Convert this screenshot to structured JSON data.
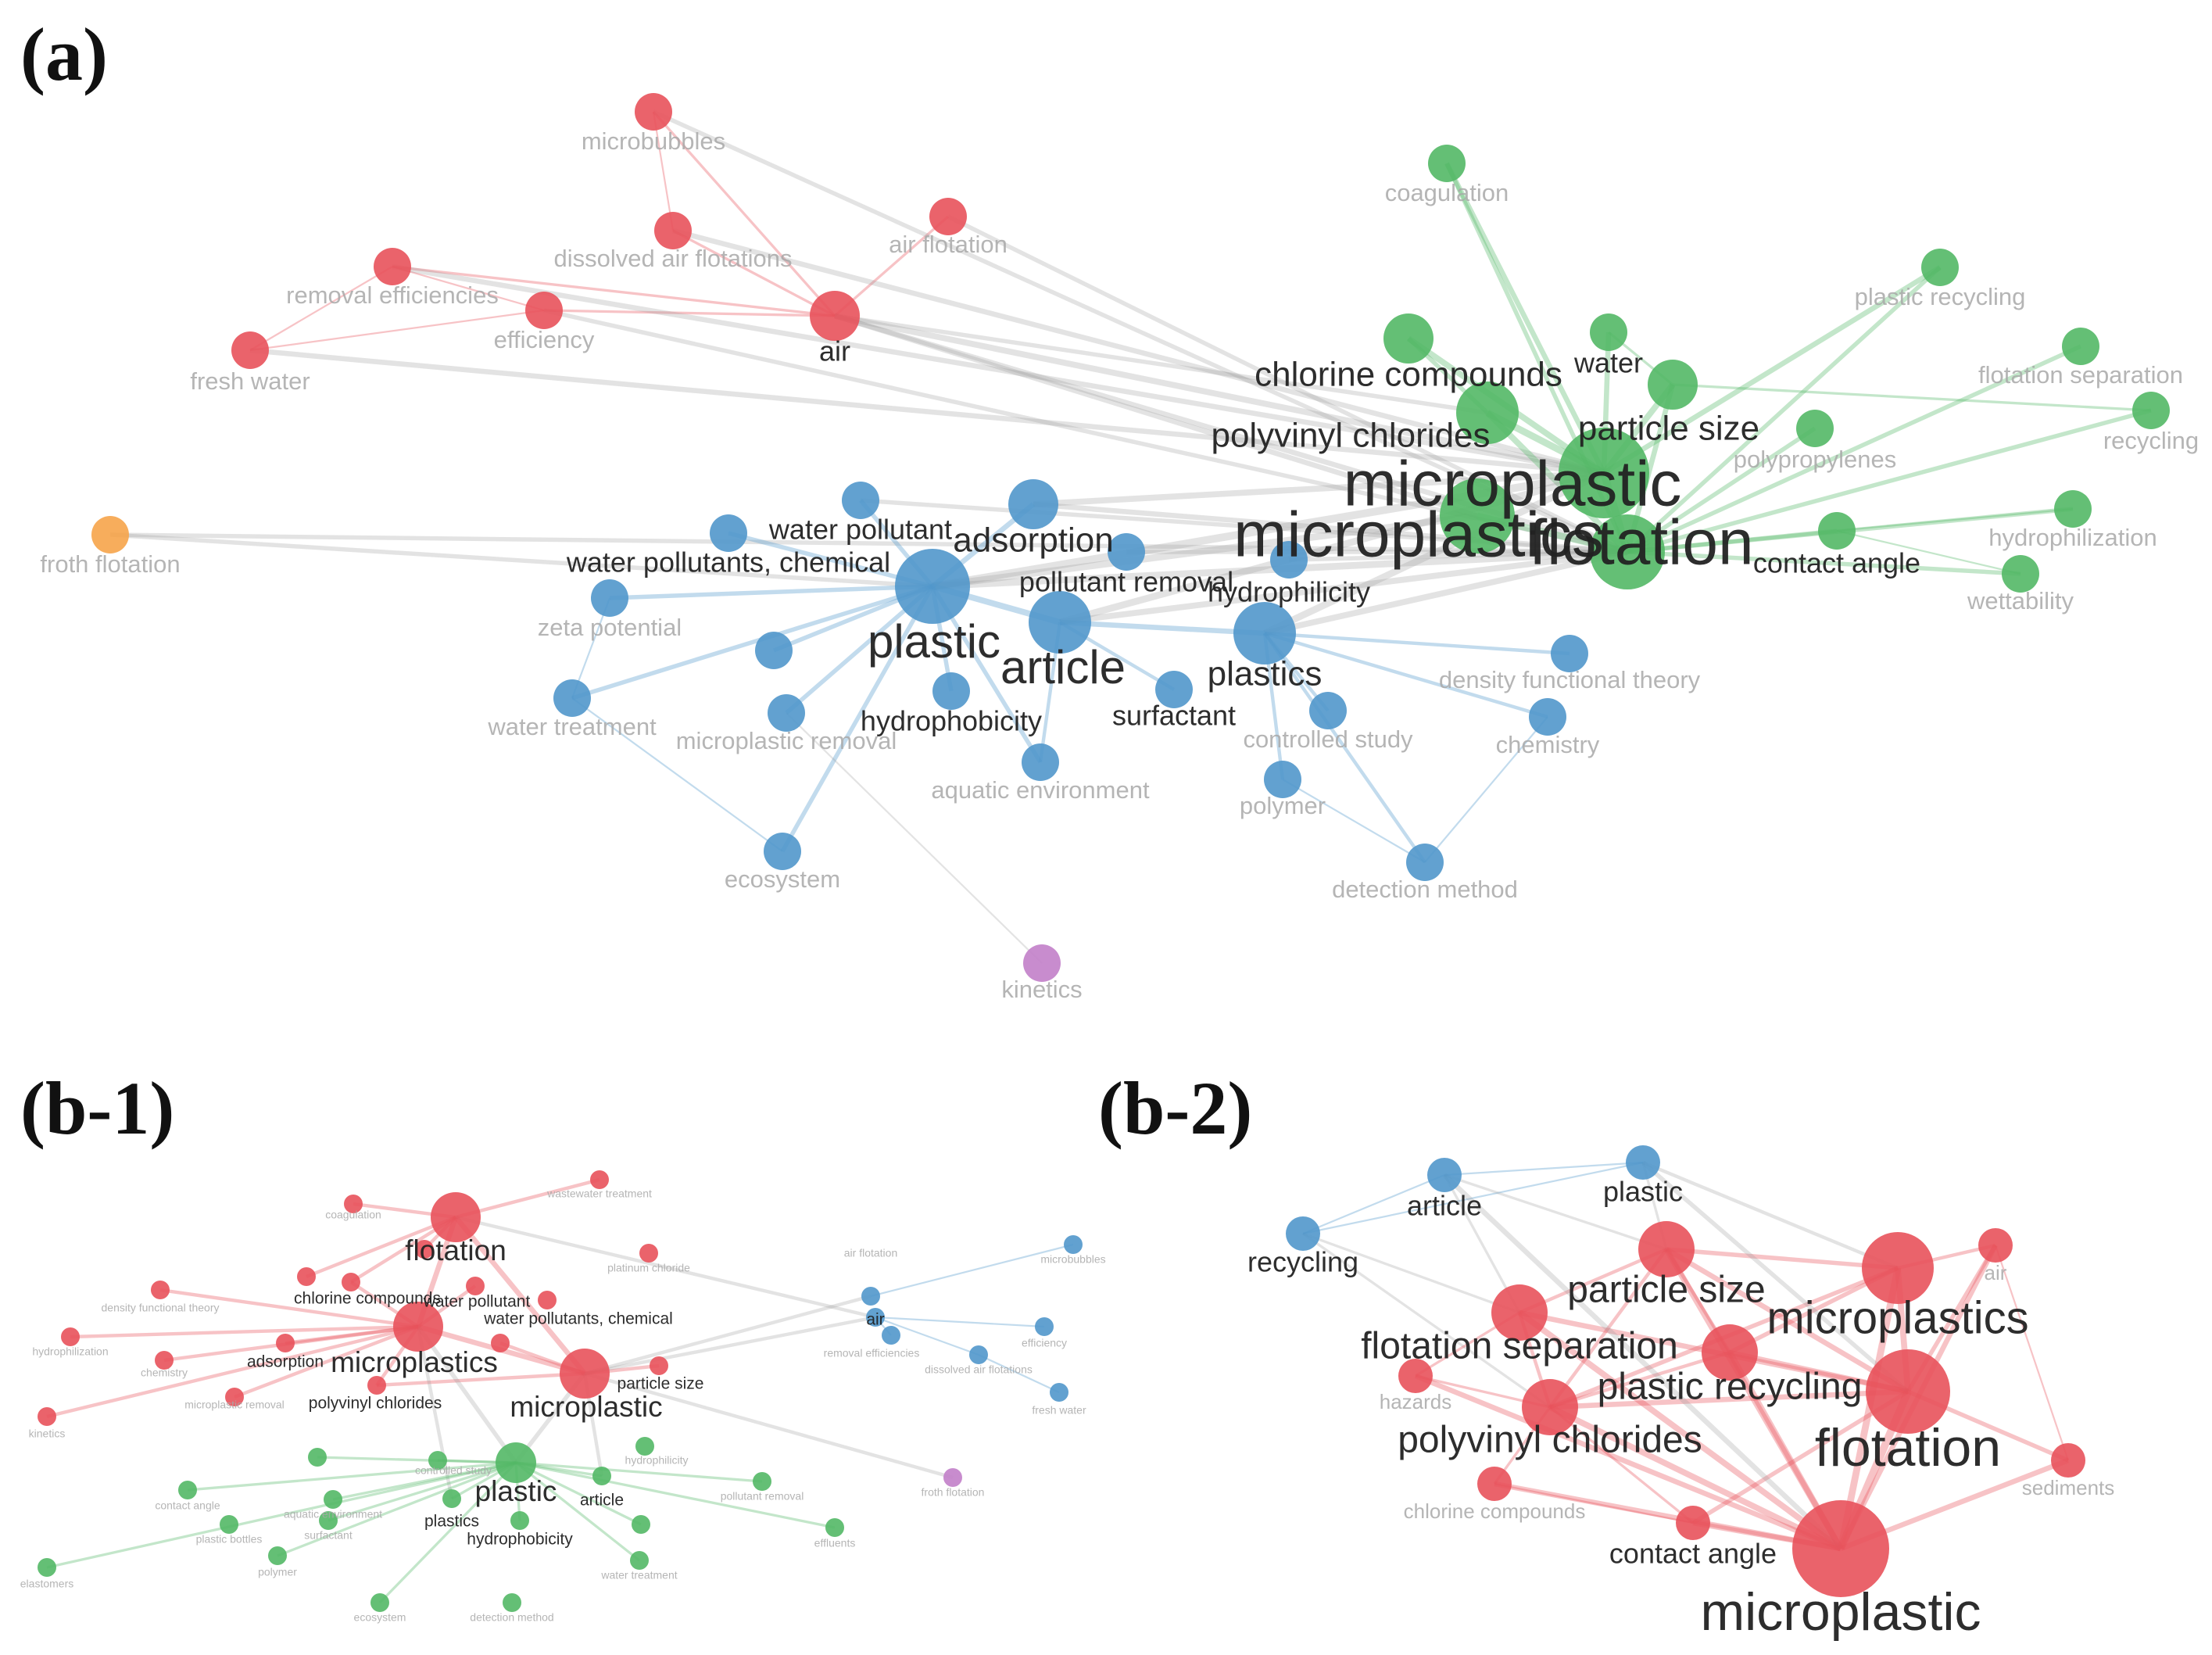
{
  "panel_labels": {
    "a": "(a)",
    "b1": "(b-1)",
    "b2": "(b-2)"
  },
  "colors": {
    "red": "#e8525b",
    "green": "#53b866",
    "blue": "#5197cb",
    "orange": "#f6a44a",
    "purple": "#c27fc9",
    "label_dark": "#222222",
    "label_light": "#a8a8a8"
  },
  "panel_a": {
    "nodes": [
      {
        "id": "microbubbles",
        "label": "microbubbles",
        "cluster": "red",
        "weight": 1,
        "emph": 0
      },
      {
        "id": "dissolved_air_flotations",
        "label": "dissolved air flotations",
        "cluster": "red",
        "weight": 1,
        "emph": 0
      },
      {
        "id": "air_flotation",
        "label": "air flotation",
        "cluster": "red",
        "weight": 1,
        "emph": 0
      },
      {
        "id": "removal_efficiencies",
        "label": "removal efficiencies",
        "cluster": "red",
        "weight": 1,
        "emph": 0
      },
      {
        "id": "efficiency",
        "label": "efficiency",
        "cluster": "red",
        "weight": 1,
        "emph": 0
      },
      {
        "id": "air",
        "label": "air",
        "cluster": "red",
        "weight": 2,
        "emph": 1
      },
      {
        "id": "fresh_water",
        "label": "fresh water",
        "cluster": "red",
        "weight": 1,
        "emph": 0
      },
      {
        "id": "froth_flotation",
        "label": "froth flotation",
        "cluster": "orange",
        "weight": 1,
        "emph": 0
      },
      {
        "id": "coagulation",
        "label": "coagulation",
        "cluster": "green",
        "weight": 1,
        "emph": 0
      },
      {
        "id": "plastic_recycling",
        "label": "plastic recycling",
        "cluster": "green",
        "weight": 1,
        "emph": 0
      },
      {
        "id": "chlorine_compounds",
        "label": "chlorine compounds",
        "cluster": "green",
        "weight": 2,
        "emph": 2
      },
      {
        "id": "water",
        "label": "water",
        "cluster": "green",
        "weight": 1,
        "emph": 1
      },
      {
        "id": "flotation_separation",
        "label": "flotation separation",
        "cluster": "green",
        "weight": 1,
        "emph": 0
      },
      {
        "id": "recycling",
        "label": "recycling",
        "cluster": "green",
        "weight": 1,
        "emph": 0
      },
      {
        "id": "polyvinyl_chlorides",
        "label": "polyvinyl chlorides",
        "cluster": "green",
        "weight": 3,
        "emph": 2
      },
      {
        "id": "particle_size",
        "label": "particle size",
        "cluster": "green",
        "weight": 2,
        "emph": 2
      },
      {
        "id": "polypropylenes",
        "label": "polypropylenes",
        "cluster": "green",
        "weight": 1,
        "emph": 0
      },
      {
        "id": "microplastic",
        "label": "microplastic",
        "cluster": "green",
        "weight": 5,
        "emph": 4
      },
      {
        "id": "microplastics",
        "label": "microplastics",
        "cluster": "green",
        "weight": 4,
        "emph": 4
      },
      {
        "id": "flotation",
        "label": "flotation",
        "cluster": "green",
        "weight": 4,
        "emph": 4
      },
      {
        "id": "contact_angle",
        "label": "contact angle",
        "cluster": "green",
        "weight": 1,
        "emph": 1
      },
      {
        "id": "hydrophilization",
        "label": "hydrophilization",
        "cluster": "green",
        "weight": 1,
        "emph": 0
      },
      {
        "id": "wettability",
        "label": "wettability",
        "cluster": "green",
        "weight": 1,
        "emph": 0
      },
      {
        "id": "water_pollutant",
        "label": "water pollutant",
        "cluster": "blue",
        "weight": 1,
        "emph": 1
      },
      {
        "id": "adsorption",
        "label": "adsorption",
        "cluster": "blue",
        "weight": 2,
        "emph": 2
      },
      {
        "id": "water_pollutants_chemical",
        "label": "water pollutants, chemical",
        "cluster": "blue",
        "weight": 1,
        "emph": 1
      },
      {
        "id": "pollutant_removal",
        "label": "pollutant removal",
        "cluster": "blue",
        "weight": 1,
        "emph": 1
      },
      {
        "id": "hydrophilicity",
        "label": "hydrophilicity",
        "cluster": "blue",
        "weight": 1,
        "emph": 1
      },
      {
        "id": "zeta_potential",
        "label": "zeta potential",
        "cluster": "blue",
        "weight": 1,
        "emph": 0
      },
      {
        "id": "plastic",
        "label": "plastic",
        "cluster": "blue",
        "weight": 4,
        "emph": 3
      },
      {
        "id": "article",
        "label": "article",
        "cluster": "blue",
        "weight": 3,
        "emph": 3
      },
      {
        "id": "plastics",
        "label": "plastics",
        "cluster": "blue",
        "weight": 3,
        "emph": 2
      },
      {
        "id": "unlabeled_blue",
        "label": "",
        "cluster": "blue",
        "weight": 1,
        "emph": 0
      },
      {
        "id": "water_treatment",
        "label": "water treatment",
        "cluster": "blue",
        "weight": 1,
        "emph": 0
      },
      {
        "id": "microplastic_removal",
        "label": "microplastic removal",
        "cluster": "blue",
        "weight": 1,
        "emph": 0
      },
      {
        "id": "hydrophobicity",
        "label": "hydrophobicity",
        "cluster": "blue",
        "weight": 1,
        "emph": 1
      },
      {
        "id": "surfactant",
        "label": "surfactant",
        "cluster": "blue",
        "weight": 1,
        "emph": 1
      },
      {
        "id": "controlled_study",
        "label": "controlled study",
        "cluster": "blue",
        "weight": 1,
        "emph": 0
      },
      {
        "id": "density_functional_theory",
        "label": "density functional theory",
        "cluster": "blue",
        "weight": 1,
        "emph": 0
      },
      {
        "id": "chemistry",
        "label": "chemistry",
        "cluster": "blue",
        "weight": 1,
        "emph": 0
      },
      {
        "id": "aquatic_environment",
        "label": "aquatic environment",
        "cluster": "blue",
        "weight": 1,
        "emph": 0
      },
      {
        "id": "polymer",
        "label": "polymer",
        "cluster": "blue",
        "weight": 1,
        "emph": 0
      },
      {
        "id": "ecosystem",
        "label": "ecosystem",
        "cluster": "blue",
        "weight": 1,
        "emph": 0
      },
      {
        "id": "detection_method",
        "label": "detection method",
        "cluster": "blue",
        "weight": 1,
        "emph": 0
      },
      {
        "id": "kinetics",
        "label": "kinetics",
        "cluster": "purple",
        "weight": 1,
        "emph": 0
      }
    ]
  },
  "panel_b1": {
    "nodes": [
      {
        "id": "flotation",
        "label": "flotation",
        "cluster": "red",
        "weight": 3,
        "emph": 2
      },
      {
        "id": "wastewater_treatment",
        "label": "wastewater treatment",
        "cluster": "red",
        "weight": 1,
        "emph": 0
      },
      {
        "id": "coagulation",
        "label": "coagulation",
        "cluster": "red",
        "weight": 1,
        "emph": 0
      },
      {
        "id": "platinum_chloride",
        "label": "platinum chloride",
        "cluster": "red",
        "weight": 1,
        "emph": 0
      },
      {
        "id": "density_functional_theory",
        "label": "density functional theory",
        "cluster": "red",
        "weight": 1,
        "emph": 0
      },
      {
        "id": "chlorine_compounds",
        "label": "chlorine compounds",
        "cluster": "red",
        "weight": 1,
        "emph": 1
      },
      {
        "id": "water_pollutant",
        "label": "water pollutant",
        "cluster": "red",
        "weight": 1,
        "emph": 1
      },
      {
        "id": "water_pollutants_chemical",
        "label": "water pollutants, chemical",
        "cluster": "red",
        "weight": 1,
        "emph": 1
      },
      {
        "id": "hydrophilization",
        "label": "hydrophilization",
        "cluster": "red",
        "weight": 1,
        "emph": 0
      },
      {
        "id": "chemistry",
        "label": "chemistry",
        "cluster": "red",
        "weight": 1,
        "emph": 0
      },
      {
        "id": "adsorption",
        "label": "adsorption",
        "cluster": "red",
        "weight": 1,
        "emph": 1
      },
      {
        "id": "microplastics",
        "label": "microplastics",
        "cluster": "red",
        "weight": 3,
        "emph": 2
      },
      {
        "id": "microplastic",
        "label": "microplastic",
        "cluster": "red",
        "weight": 3,
        "emph": 2
      },
      {
        "id": "particle_size",
        "label": "particle size",
        "cluster": "red",
        "weight": 1,
        "emph": 1
      },
      {
        "id": "microplastic_removal",
        "label": "microplastic removal",
        "cluster": "red",
        "weight": 1,
        "emph": 0
      },
      {
        "id": "polyvinyl_chlorides",
        "label": "polyvinyl chlorides",
        "cluster": "red",
        "weight": 1,
        "emph": 1
      },
      {
        "id": "kinetics",
        "label": "kinetics",
        "cluster": "red",
        "weight": 1,
        "emph": 0
      },
      {
        "id": "air_flotation",
        "label": "air flotation",
        "cluster": "blue",
        "weight": 1,
        "emph": 0
      },
      {
        "id": "microbubbles",
        "label": "microbubbles",
        "cluster": "blue",
        "weight": 1,
        "emph": 0
      },
      {
        "id": "air",
        "label": "air",
        "cluster": "blue",
        "weight": 1,
        "emph": 1
      },
      {
        "id": "removal_efficiencies",
        "label": "removal efficiencies",
        "cluster": "blue",
        "weight": 1,
        "emph": 0
      },
      {
        "id": "efficiency",
        "label": "efficiency",
        "cluster": "blue",
        "weight": 1,
        "emph": 0
      },
      {
        "id": "dissolved_air_flotations",
        "label": "dissolved air flotations",
        "cluster": "blue",
        "weight": 1,
        "emph": 0
      },
      {
        "id": "fresh_water",
        "label": "fresh water",
        "cluster": "blue",
        "weight": 1,
        "emph": 0
      },
      {
        "id": "froth_flotation",
        "label": "froth flotation",
        "cluster": "purple",
        "weight": 1,
        "emph": 0
      },
      {
        "id": "plastic",
        "label": "plastic",
        "cluster": "green",
        "weight": 2,
        "emph": 2
      },
      {
        "id": "article",
        "label": "article",
        "cluster": "green",
        "weight": 1,
        "emph": 1
      },
      {
        "id": "plastics",
        "label": "plastics",
        "cluster": "green",
        "weight": 1,
        "emph": 1
      },
      {
        "id": "hydrophobicity",
        "label": "hydrophobicity",
        "cluster": "green",
        "weight": 1,
        "emph": 1
      },
      {
        "id": "hydrophilicity",
        "label": "hydrophilicity",
        "cluster": "green",
        "weight": 1,
        "emph": 0
      },
      {
        "id": "controlled_study",
        "label": "controlled study",
        "cluster": "green",
        "weight": 1,
        "emph": 0
      },
      {
        "id": "aquatic_environment",
        "label": "aquatic environment",
        "cluster": "green",
        "weight": 1,
        "emph": 0
      },
      {
        "id": "pollutant_removal",
        "label": "pollutant removal",
        "cluster": "green",
        "weight": 1,
        "emph": 0
      },
      {
        "id": "contact_angle",
        "label": "contact angle",
        "cluster": "green",
        "weight": 1,
        "emph": 0
      },
      {
        "id": "plastic_bottles",
        "label": "plastic bottles",
        "cluster": "green",
        "weight": 1,
        "emph": 0
      },
      {
        "id": "surfactant",
        "label": "surfactant",
        "cluster": "green",
        "weight": 1,
        "emph": 0
      },
      {
        "id": "polymer",
        "label": "polymer",
        "cluster": "green",
        "weight": 1,
        "emph": 0
      },
      {
        "id": "ecosystem",
        "label": "ecosystem",
        "cluster": "green",
        "weight": 1,
        "emph": 0
      },
      {
        "id": "detection_method",
        "label": "detection method",
        "cluster": "green",
        "weight": 1,
        "emph": 0
      },
      {
        "id": "water_treatment",
        "label": "water treatment",
        "cluster": "green",
        "weight": 1,
        "emph": 0
      },
      {
        "id": "elastomers",
        "label": "elastomers",
        "cluster": "green",
        "weight": 1,
        "emph": 0
      },
      {
        "id": "effluents",
        "label": "effluents",
        "cluster": "green",
        "weight": 1,
        "emph": 0
      },
      {
        "id": "g1",
        "label": "",
        "cluster": "green",
        "weight": 1,
        "emph": 0
      },
      {
        "id": "g2",
        "label": "",
        "cluster": "green",
        "weight": 1,
        "emph": 0
      },
      {
        "id": "r1",
        "label": "",
        "cluster": "red",
        "weight": 1,
        "emph": 0
      },
      {
        "id": "r2",
        "label": "",
        "cluster": "red",
        "weight": 1,
        "emph": 0
      },
      {
        "id": "r3",
        "label": "",
        "cluster": "red",
        "weight": 1,
        "emph": 0
      }
    ]
  },
  "panel_b2": {
    "nodes": [
      {
        "id": "article",
        "label": "article",
        "cluster": "blue",
        "weight": 1,
        "emph": 1
      },
      {
        "id": "plastic",
        "label": "plastic",
        "cluster": "blue",
        "weight": 1,
        "emph": 1
      },
      {
        "id": "recycling",
        "label": "recycling",
        "cluster": "blue",
        "weight": 1,
        "emph": 1
      },
      {
        "id": "air",
        "label": "air",
        "cluster": "red",
        "weight": 1,
        "emph": 0
      },
      {
        "id": "particle_size",
        "label": "particle size",
        "cluster": "red",
        "weight": 2,
        "emph": 2
      },
      {
        "id": "microplastics",
        "label": "microplastics",
        "cluster": "red",
        "weight": 3,
        "emph": 3
      },
      {
        "id": "flotation_separation",
        "label": "flotation separation",
        "cluster": "red",
        "weight": 2,
        "emph": 2
      },
      {
        "id": "plastic_recycling",
        "label": "plastic recycling",
        "cluster": "red",
        "weight": 2,
        "emph": 2
      },
      {
        "id": "hazards",
        "label": "hazards",
        "cluster": "red",
        "weight": 1,
        "emph": 0
      },
      {
        "id": "polyvinyl_chlorides",
        "label": "polyvinyl chlorides",
        "cluster": "red",
        "weight": 2,
        "emph": 2
      },
      {
        "id": "flotation",
        "label": "flotation",
        "cluster": "red",
        "weight": 4,
        "emph": 4
      },
      {
        "id": "sediments",
        "label": "sediments",
        "cluster": "red",
        "weight": 1,
        "emph": 0
      },
      {
        "id": "chlorine_compounds",
        "label": "chlorine compounds",
        "cluster": "red",
        "weight": 1,
        "emph": 0
      },
      {
        "id": "contact_angle",
        "label": "contact angle",
        "cluster": "red",
        "weight": 1,
        "emph": 1
      },
      {
        "id": "microplastic",
        "label": "microplastic",
        "cluster": "red",
        "weight": 5,
        "emph": 4
      }
    ]
  }
}
